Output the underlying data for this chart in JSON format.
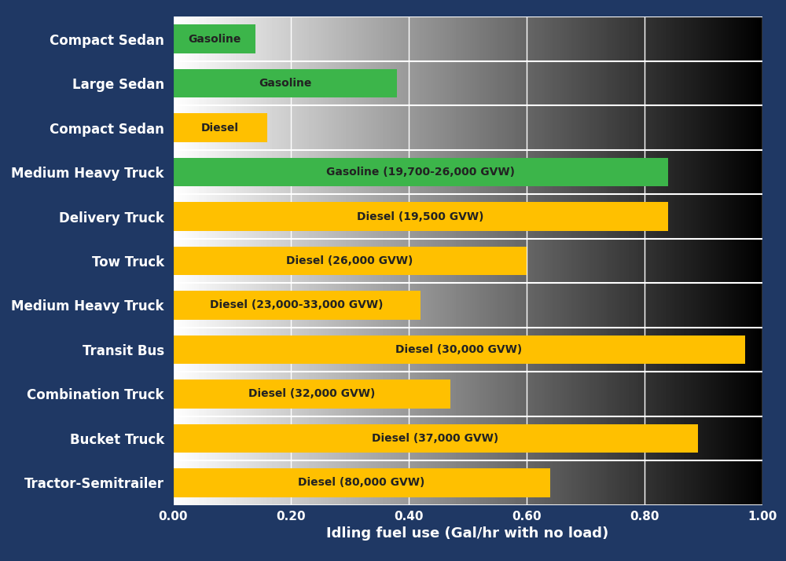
{
  "categories": [
    "Compact Sedan",
    "Large Sedan",
    "Compact Sedan",
    "Medium Heavy Truck",
    "Delivery Truck",
    "Tow Truck",
    "Medium Heavy Truck",
    "Transit Bus",
    "Combination Truck",
    "Bucket Truck",
    "Tractor-Semitrailer"
  ],
  "labels": [
    "Gasoline",
    "Gasoline",
    "Diesel",
    "Gasoline (19,700-26,000 GVW)",
    "Diesel (19,500 GVW)",
    "Diesel (26,000 GVW)",
    "Diesel (23,000-33,000 GVW)",
    "Diesel (30,000 GVW)",
    "Diesel (32,000 GVW)",
    "Diesel (37,000 GVW)",
    "Diesel (80,000 GVW)"
  ],
  "values": [
    0.14,
    0.38,
    0.16,
    0.84,
    0.84,
    0.6,
    0.42,
    0.97,
    0.47,
    0.89,
    0.64
  ],
  "colors": [
    "#3cb54a",
    "#3cb54a",
    "#ffc000",
    "#3cb54a",
    "#ffc000",
    "#ffc000",
    "#ffc000",
    "#ffc000",
    "#ffc000",
    "#ffc000",
    "#ffc000"
  ],
  "background_color": "#1f3864",
  "xlabel": "Idling fuel use (Gal/hr with no load)",
  "xlim": [
    0,
    1.0
  ],
  "xticks": [
    0.0,
    0.2,
    0.4,
    0.6,
    0.8,
    1.0
  ],
  "xtick_labels": [
    "0.00",
    "0.20",
    "0.40",
    "0.60",
    "0.80",
    "1.00"
  ],
  "ylabel_fontsize": 13,
  "tick_fontsize": 11,
  "bar_label_fontsize": 10,
  "ytick_fontsize": 12,
  "bar_height": 0.65,
  "label_color": "#222222"
}
